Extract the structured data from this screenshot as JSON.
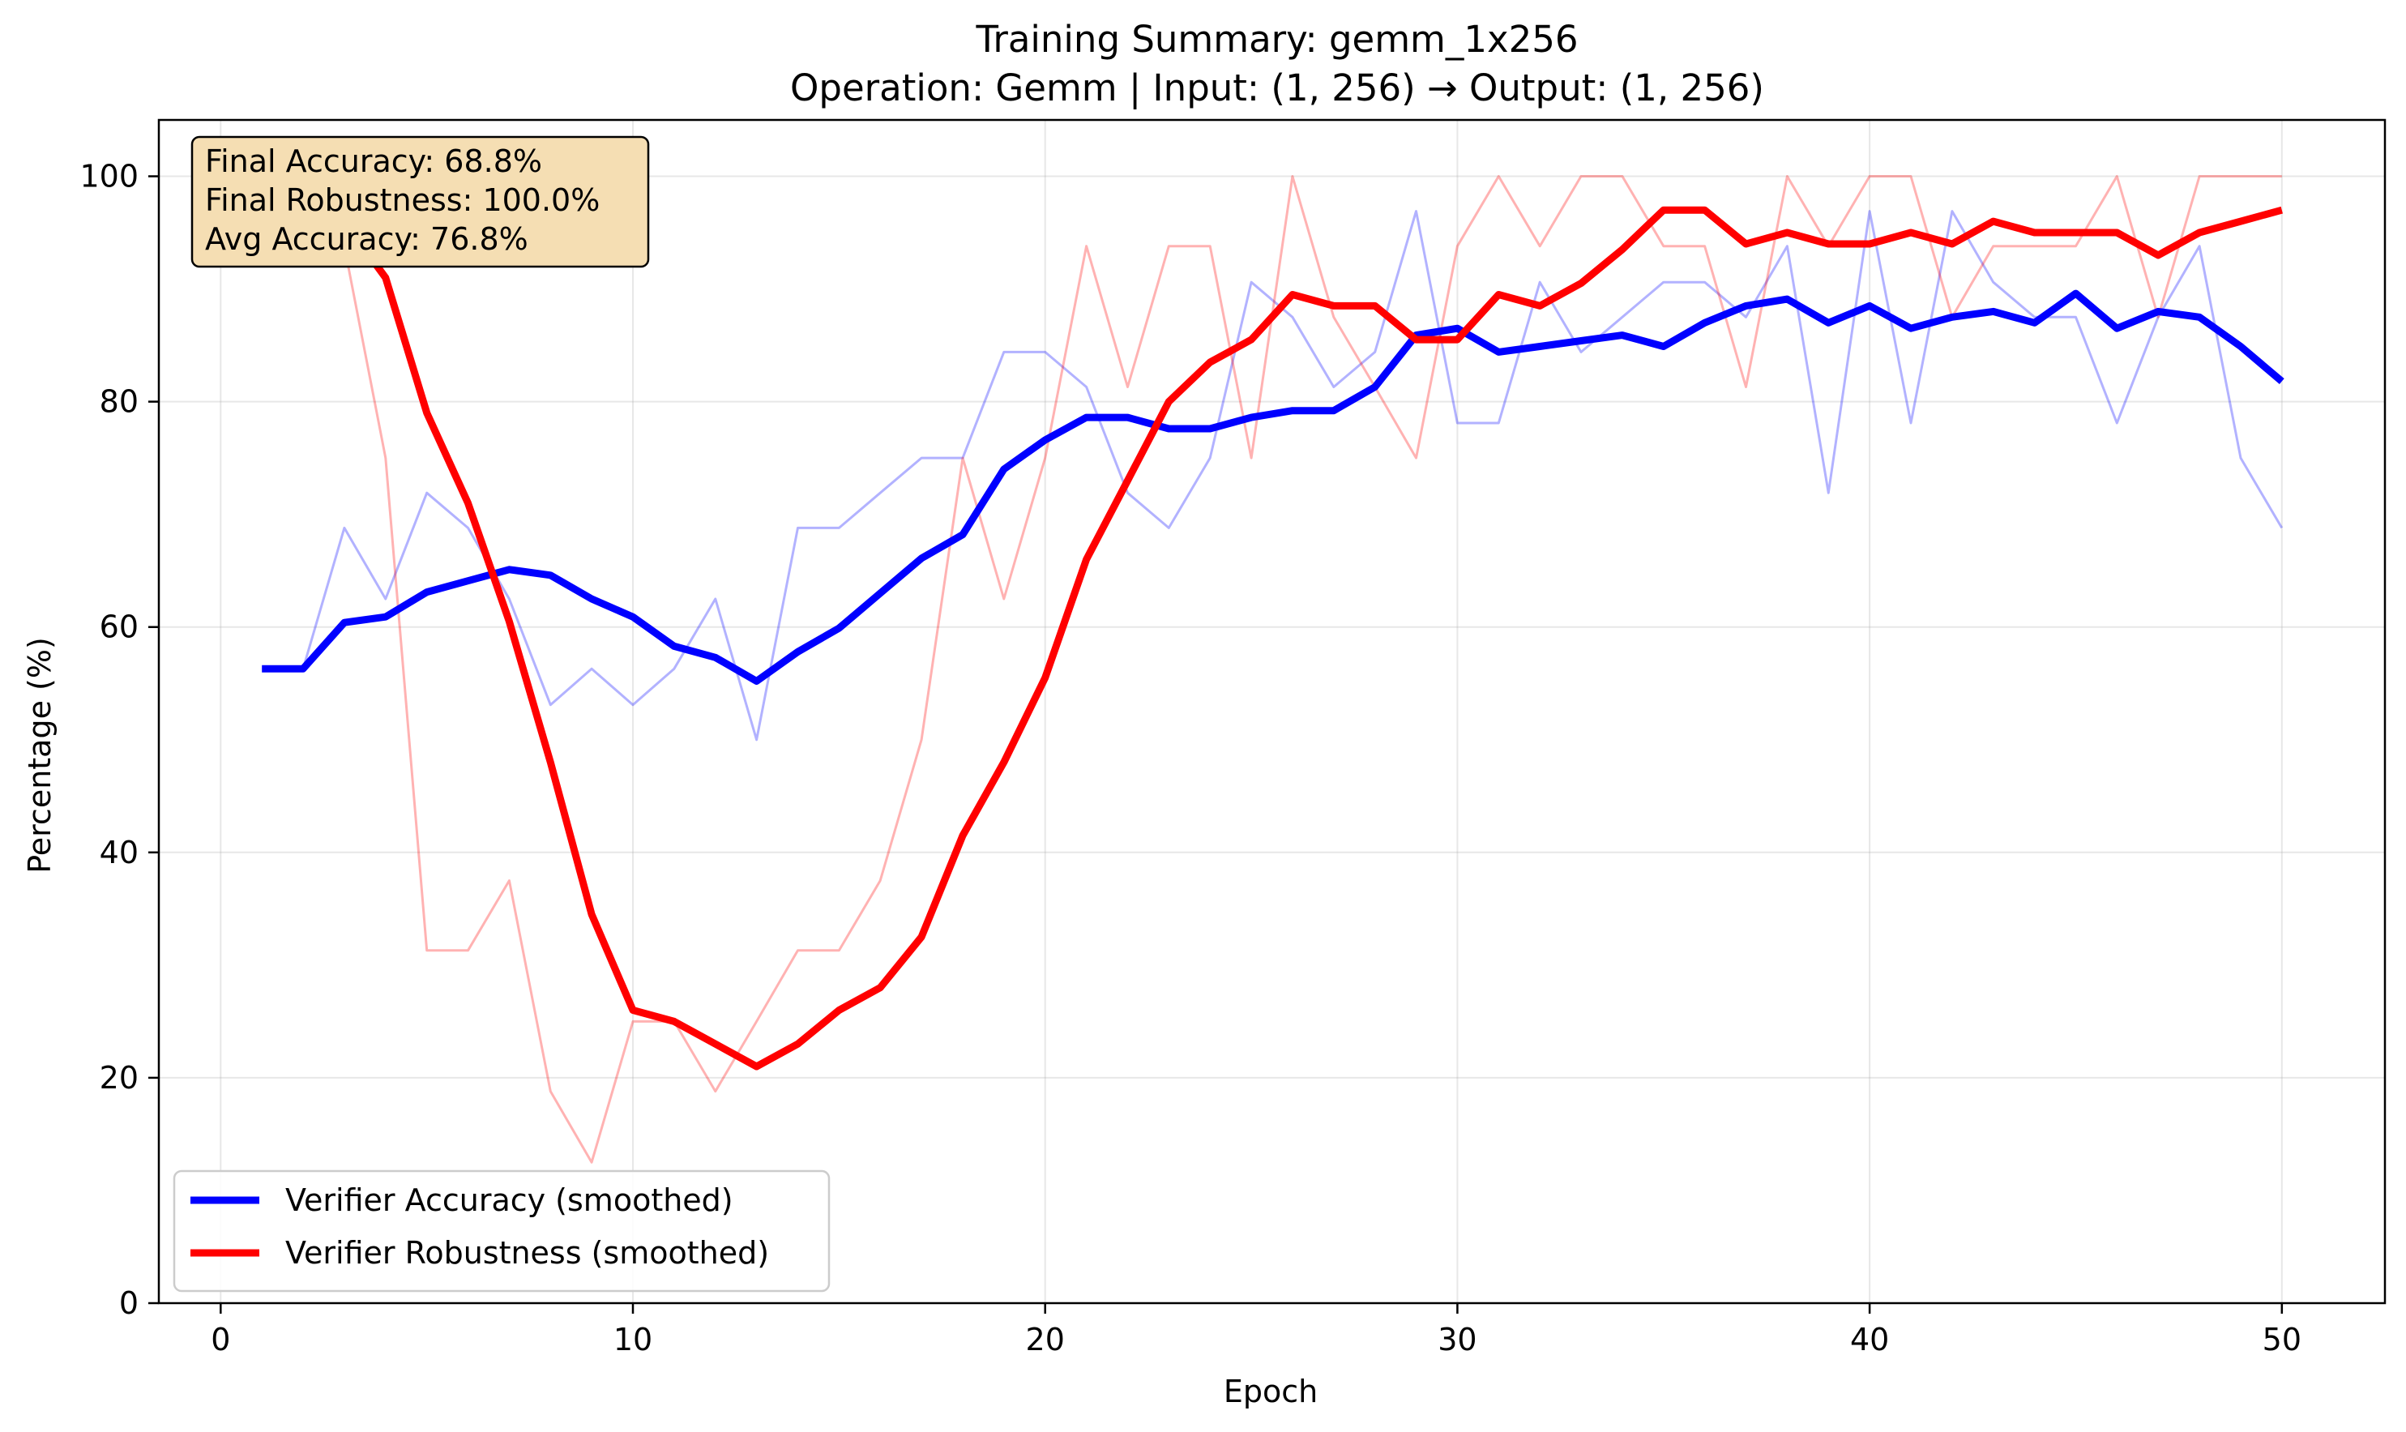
{
  "chart_data": {
    "type": "line",
    "title": "Training Summary: gemm_1x256",
    "subtitle": "Operation: Gemm | Input: (1, 256) → Output: (1, 256)",
    "xlabel": "Epoch",
    "ylabel": "Percentage (%)",
    "xlim": [
      -1.5,
      52.5
    ],
    "ylim": [
      0,
      105
    ],
    "xticks": [
      0,
      10,
      20,
      30,
      40,
      50
    ],
    "yticks": [
      0,
      20,
      40,
      60,
      80,
      100
    ],
    "grid": true,
    "legend_position": "lower-left",
    "annotation": [
      "Final Accuracy: 68.8%",
      "Final Robustness: 100.0%",
      "Avg Accuracy: 76.8%"
    ],
    "x": [
      1,
      2,
      3,
      4,
      5,
      6,
      7,
      8,
      9,
      10,
      11,
      12,
      13,
      14,
      15,
      16,
      17,
      18,
      19,
      20,
      21,
      22,
      23,
      24,
      25,
      26,
      27,
      28,
      29,
      30,
      31,
      32,
      33,
      34,
      35,
      36,
      37,
      38,
      39,
      40,
      41,
      42,
      43,
      44,
      45,
      46,
      47,
      48,
      49,
      50
    ],
    "series": [
      {
        "name": "Verifier Accuracy (smoothed)",
        "color": "#0000ff",
        "role": "smoothed",
        "values": [
          56.3,
          56.3,
          60.4,
          60.9,
          63.1,
          64.1,
          65.1,
          64.6,
          62.5,
          60.9,
          58.3,
          57.3,
          55.2,
          57.8,
          59.9,
          63.0,
          66.1,
          68.2,
          74.0,
          76.6,
          78.6,
          78.6,
          77.6,
          77.6,
          78.6,
          79.2,
          79.2,
          81.3,
          85.9,
          86.5,
          84.4,
          84.9,
          85.4,
          85.9,
          84.9,
          87.0,
          88.5,
          89.1,
          87.0,
          88.5,
          86.5,
          87.5,
          88.0,
          87.0,
          89.6,
          86.5,
          88.0,
          87.5,
          84.9,
          81.8
        ]
      },
      {
        "name": "Verifier Robustness (smoothed)",
        "color": "#ff0000",
        "role": "smoothed",
        "values": [
          100.0,
          97.0,
          96.0,
          91.0,
          79.0,
          71.0,
          60.5,
          48.0,
          34.5,
          26.0,
          25.0,
          23.0,
          21.0,
          23.0,
          26.0,
          28.0,
          32.5,
          41.5,
          48.0,
          55.5,
          66.0,
          73.0,
          80.0,
          83.5,
          85.5,
          89.5,
          88.5,
          88.5,
          85.5,
          85.5,
          89.5,
          88.5,
          90.5,
          93.5,
          97.0,
          97.0,
          94.0,
          95.0,
          94.0,
          94.0,
          95.0,
          94.0,
          96.0,
          95.0,
          95.0,
          95.0,
          93.0,
          95.0,
          96.0,
          97.0
        ]
      },
      {
        "name": "Verifier Accuracy (raw)",
        "color": "#0000ff",
        "role": "raw",
        "values": [
          56.3,
          56.3,
          68.8,
          62.5,
          71.9,
          68.8,
          62.5,
          53.1,
          56.3,
          53.1,
          56.3,
          62.5,
          50.0,
          68.8,
          68.8,
          71.9,
          75.0,
          75.0,
          84.4,
          84.4,
          81.3,
          71.9,
          68.8,
          75.0,
          90.6,
          87.5,
          81.3,
          84.4,
          96.9,
          78.1,
          78.1,
          90.6,
          84.4,
          87.5,
          90.6,
          90.6,
          87.5,
          93.8,
          71.9,
          96.9,
          78.1,
          96.9,
          90.6,
          87.5,
          87.5,
          78.1,
          87.5,
          93.8,
          75.0,
          68.8
        ]
      },
      {
        "name": "Verifier Robustness (raw)",
        "color": "#ff0000",
        "role": "raw",
        "values": [
          100.0,
          100.0,
          93.8,
          75.0,
          31.3,
          31.3,
          37.5,
          18.8,
          12.5,
          25.0,
          25.0,
          18.8,
          25.0,
          31.3,
          31.3,
          37.5,
          50.0,
          75.0,
          62.5,
          75.0,
          93.8,
          81.3,
          93.8,
          93.8,
          75.0,
          100.0,
          87.5,
          81.3,
          75.0,
          93.8,
          100.0,
          93.8,
          100.0,
          100.0,
          93.8,
          93.8,
          81.3,
          100.0,
          93.8,
          100.0,
          100.0,
          87.5,
          93.8,
          93.8,
          93.8,
          100.0,
          87.5,
          100.0,
          100.0,
          100.0
        ]
      }
    ]
  }
}
